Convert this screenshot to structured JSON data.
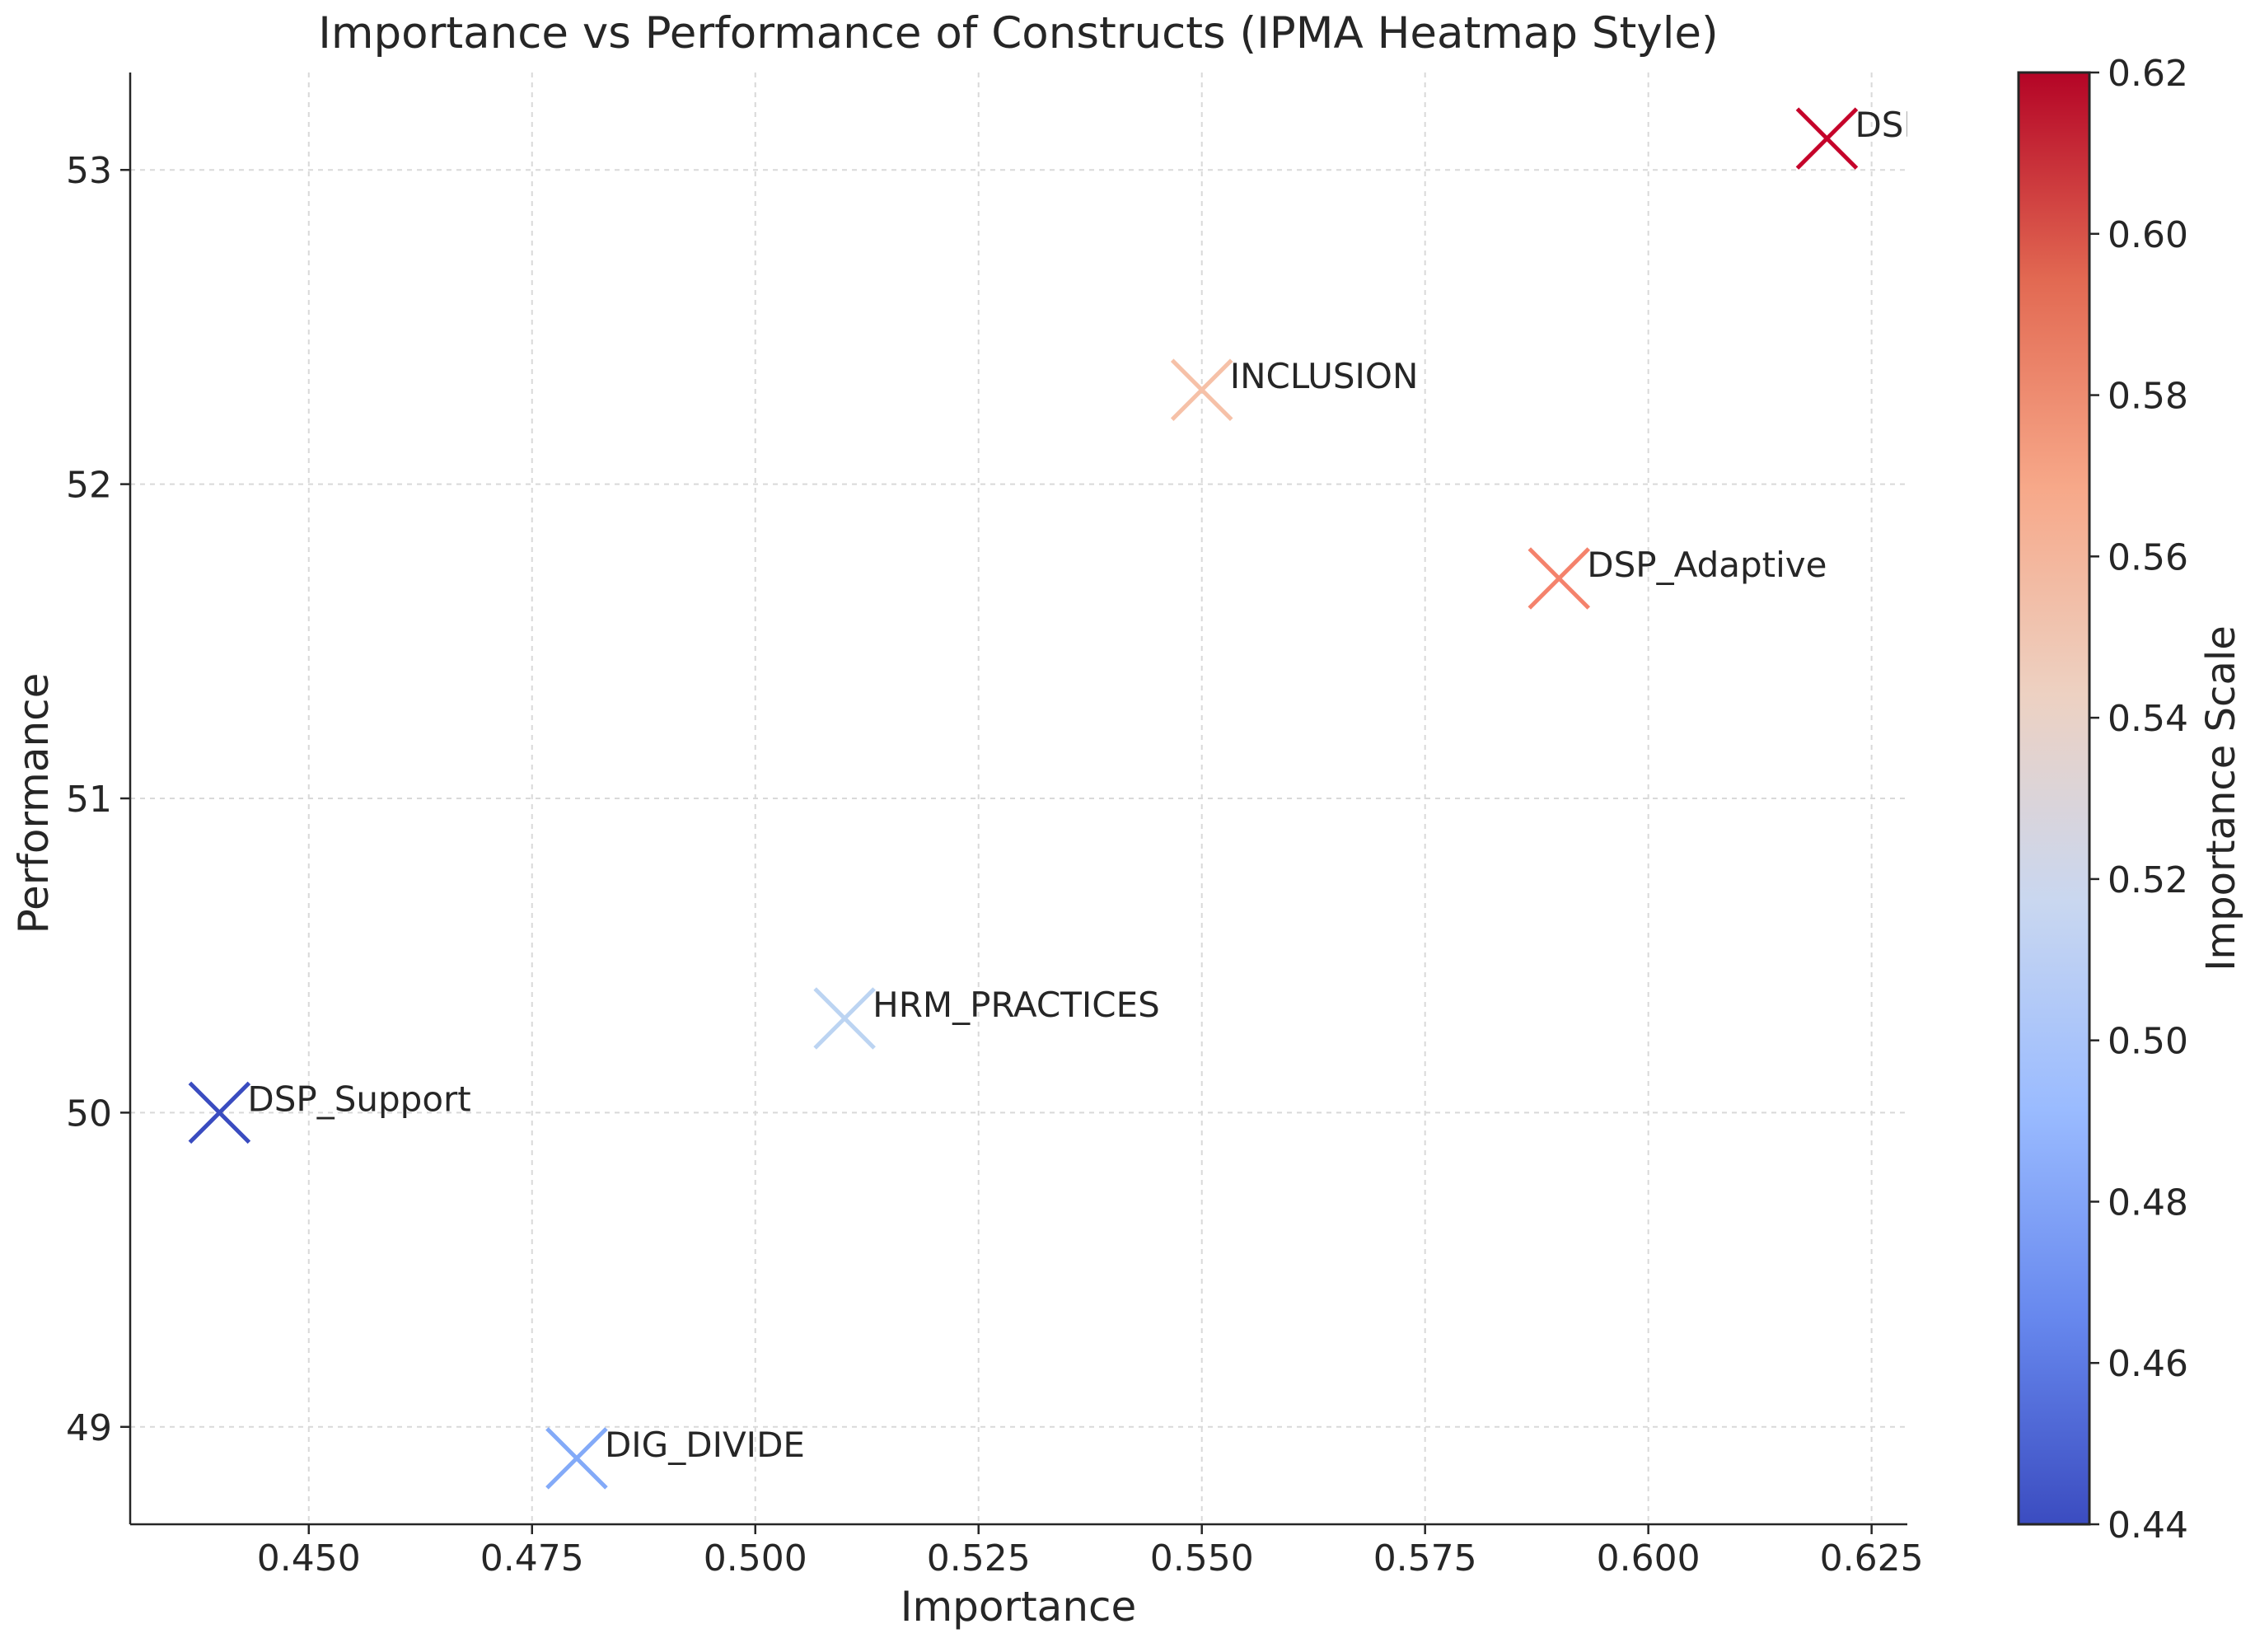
{
  "chart_data": {
    "type": "scatter",
    "title": "Importance vs Performance of Constructs (IPMA Heatmap Style)",
    "xlabel": "Importance",
    "ylabel": "Performance",
    "xlim": [
      0.43,
      0.629
    ],
    "ylim": [
      48.69,
      53.31
    ],
    "xticks": [
      0.45,
      0.475,
      0.5,
      0.525,
      0.55,
      0.575,
      0.6,
      0.625
    ],
    "xtick_labels": [
      "0.450",
      "0.475",
      "0.500",
      "0.525",
      "0.550",
      "0.575",
      "0.600",
      "0.625"
    ],
    "yticks": [
      49,
      50,
      51,
      52,
      53
    ],
    "ytick_labels": [
      "49",
      "50",
      "51",
      "52",
      "53"
    ],
    "grid": true,
    "marker": "x",
    "points": [
      {
        "label": "DSP_Task",
        "x": 0.62,
        "y": 53.1,
        "color": "#c5032a"
      },
      {
        "label": "INCLUSION",
        "x": 0.55,
        "y": 52.3,
        "color": "#f6c1a8"
      },
      {
        "label": "DSP_Adaptive",
        "x": 0.59,
        "y": 51.7,
        "color": "#f4826c"
      },
      {
        "label": "HRM_PRACTICES",
        "x": 0.51,
        "y": 50.3,
        "color": "#bcd4f2"
      },
      {
        "label": "DSP_Support",
        "x": 0.44,
        "y": 50.0,
        "color": "#3a4cc0"
      },
      {
        "label": "DIG_DIVIDE",
        "x": 0.48,
        "y": 48.9,
        "color": "#83aaf8"
      }
    ],
    "colorbar": {
      "label": "Importance Scale",
      "min": 0.44,
      "max": 0.62,
      "ticks": [
        0.44,
        0.46,
        0.48,
        0.5,
        0.52,
        0.54,
        0.56,
        0.58,
        0.6,
        0.62
      ],
      "tick_labels": [
        "0.44",
        "0.46",
        "0.48",
        "0.50",
        "0.52",
        "0.54",
        "0.56",
        "0.58",
        "0.60",
        "0.62"
      ],
      "colormap": "coolwarm",
      "stops": [
        "#3b4cc0",
        "#6788ee",
        "#9abbff",
        "#c9d7f0",
        "#edd1c2",
        "#f7a889",
        "#e26952",
        "#b40426"
      ]
    }
  }
}
